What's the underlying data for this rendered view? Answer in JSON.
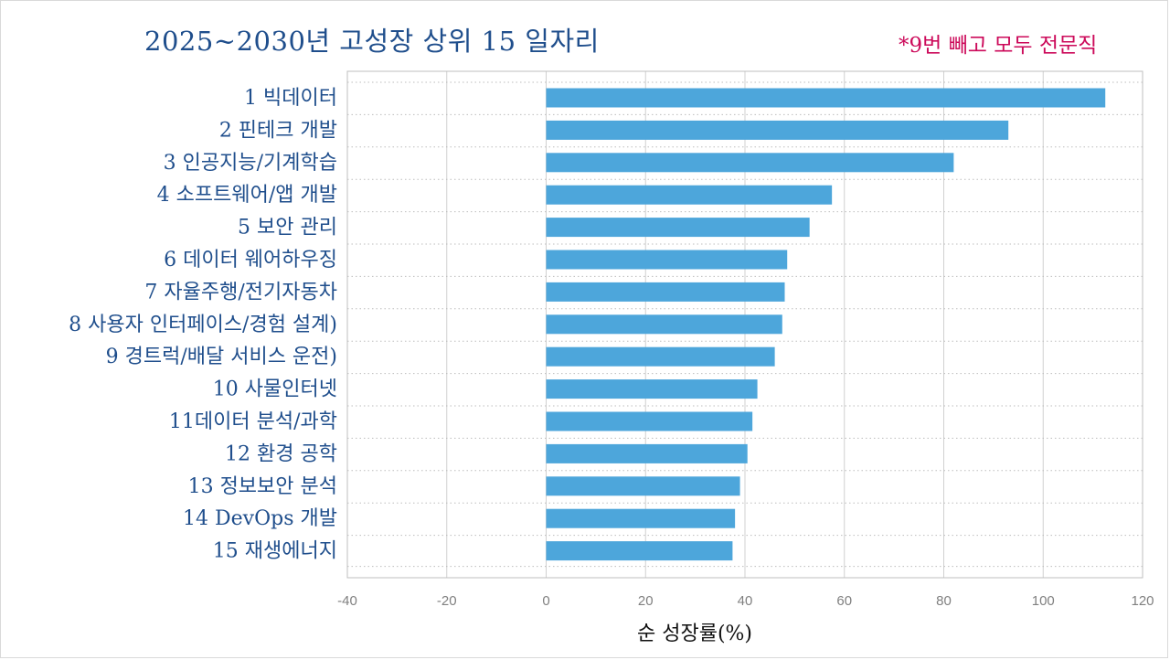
{
  "chart_data": {
    "type": "bar",
    "orientation": "horizontal",
    "title": "2025~2030년 고성장 상위 15 일자리",
    "note": "*9번 빼고 모두 전문직",
    "xlabel": "순 성장률(%)",
    "xlim": [
      -40,
      120
    ],
    "xticks": [
      -40,
      -20,
      0,
      20,
      40,
      60,
      80,
      100,
      120
    ],
    "grid": true,
    "categories": [
      "1 빅데이터",
      "2 핀테크 개발",
      "3 인공지능/기계학습",
      "4 소프트웨어/앱 개발",
      "5 보안 관리",
      "6 데이터 웨어하우징",
      "7 자율주행/전기자동차",
      "8 사용자 인터페이스/경험 설계)",
      "9 경트럭/배달 서비스 운전)",
      "10 사물인터넷",
      "11데이터 분석/과학",
      "12 환경 공학",
      "13 정보보안 분석",
      "14 DevOps 개발",
      "15 재생에너지"
    ],
    "values": [
      112.5,
      93,
      82,
      57.5,
      53,
      48.5,
      48,
      47.5,
      46,
      42.5,
      41.5,
      40.5,
      39,
      38,
      37.5
    ],
    "bar_color": "#4da6db"
  }
}
